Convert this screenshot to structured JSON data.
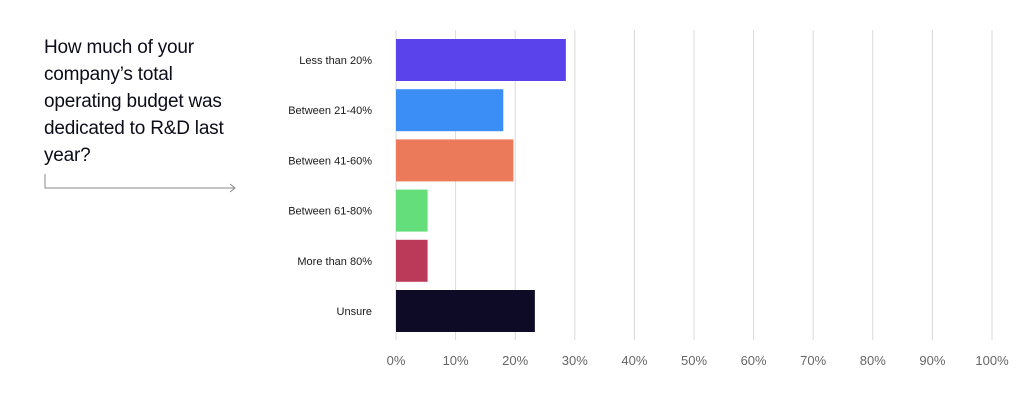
{
  "question": "How much of your company’s total operating budget was dedicated to R&D last year?",
  "chart_data": {
    "type": "bar",
    "orientation": "horizontal",
    "categories": [
      "Less than 20%",
      "Between 21-40%",
      "Between 41-60%",
      "Between 61-80%",
      "More than 80%",
      "Unsure"
    ],
    "values": [
      28.5,
      18,
      19.7,
      5.3,
      5.3,
      23.3
    ],
    "colors": [
      "#5b43ec",
      "#3b8ef5",
      "#eb7a5a",
      "#63de7a",
      "#bb3a5a",
      "#0d0b26"
    ],
    "xlim": [
      0,
      100
    ],
    "xticks": [
      "0%",
      "10%",
      "20%",
      "30%",
      "40%",
      "50%",
      "60%",
      "70%",
      "80%",
      "90%",
      "100%"
    ],
    "grid": true,
    "title": "",
    "xlabel": "",
    "ylabel": ""
  }
}
